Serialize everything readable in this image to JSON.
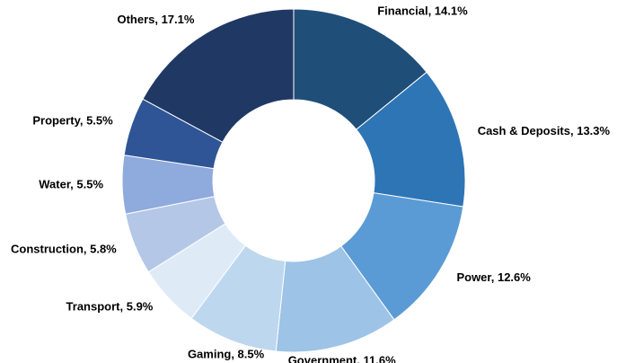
{
  "chart_data": {
    "type": "donut",
    "values": [
      14.1,
      13.3,
      12.6,
      11.6,
      8.5,
      5.9,
      5.8,
      5.5,
      5.5,
      17.1
    ],
    "value_labels": [
      "Financial, 14.1%",
      "Cash & Deposits, 13.3%",
      "Power, 12.6%",
      "Government, 11.6%",
      "Gaming, 8.5%",
      "Transport, 5.9%",
      "Construction, 5.8%",
      "Water, 5.5%",
      "Property, 5.5%",
      "Others, 17.1%"
    ],
    "colors": [
      "#1f4e79",
      "#2e75b6",
      "#5b9bd5",
      "#9dc3e6",
      "#bdd7ee",
      "#deebf7",
      "#b4c7e7",
      "#8faadc",
      "#2f5597",
      "#203864"
    ]
  }
}
